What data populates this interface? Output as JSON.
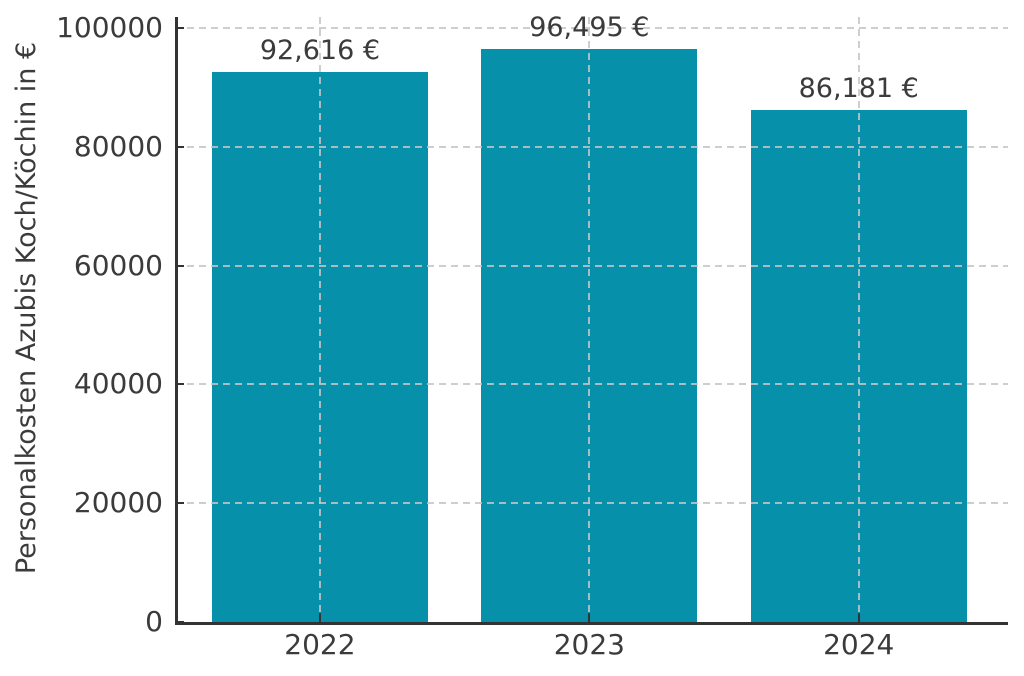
{
  "chart_data": {
    "type": "bar",
    "title": "",
    "categories": [
      "2022",
      "2023",
      "2024"
    ],
    "values": [
      92616,
      96495,
      86181
    ],
    "value_labels": [
      "92,616 €",
      "96,495 €",
      "86,181 €"
    ],
    "xlabel": "",
    "ylabel": "Personalkosten Azubis Koch/Köchin in €",
    "ylim": [
      0,
      100000
    ],
    "yticks": [
      0,
      20000,
      40000,
      60000,
      80000,
      100000
    ],
    "ytick_labels": [
      "0",
      "20000",
      "40000",
      "60000",
      "80000",
      "100000"
    ],
    "grid": {
      "horizontal": true,
      "vertical": true,
      "style": "dashed",
      "above_bars": true
    },
    "legend_position": "none",
    "tick_direction": "in",
    "colors": {
      "bar": "#0690a9",
      "text": "#3b3b3b",
      "grid": "#c5c5c5",
      "spine": "#333333",
      "background": "#ffffff"
    }
  }
}
